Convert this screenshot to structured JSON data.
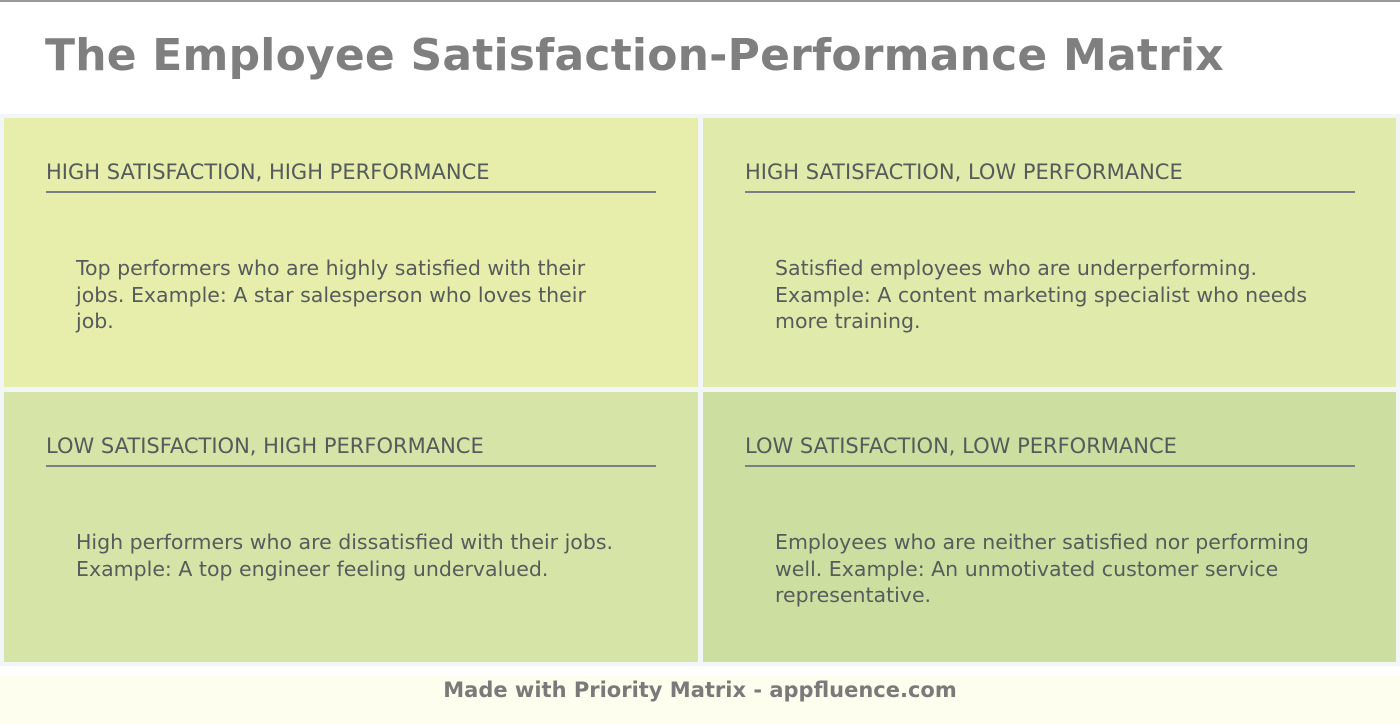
{
  "title": "The Employee Satisfaction-Performance Matrix",
  "colors": {
    "title_text": "#7f7f7f",
    "q1_bg": "#e7eeab",
    "q2_bg": "#e0eaab",
    "q3_bg": "#d6e5a7",
    "q4_bg": "#cddfa0",
    "grid_bg": "#f3f6f6",
    "footer_bg": "#fdfeee"
  },
  "quadrants": [
    {
      "heading": "HIGH SATISFACTION, HIGH PERFORMANCE",
      "body": "Top performers who are highly satisfied with their jobs. Example: A star salesperson who loves their job."
    },
    {
      "heading": "HIGH SATISFACTION, LOW PERFORMANCE",
      "body": "Satisfied employees who are underperforming. Example: A content marketing specialist who needs more training."
    },
    {
      "heading": "LOW SATISFACTION, HIGH PERFORMANCE",
      "body": "High performers who are dissatisfied with their jobs. Example: A top engineer feeling undervalued."
    },
    {
      "heading": "LOW SATISFACTION, LOW PERFORMANCE",
      "body": "Employees who are neither satisfied nor performing well. Example: An unmotivated customer service representative."
    }
  ],
  "footer": {
    "text": "Made with Priority Matrix - appfluence.com"
  }
}
